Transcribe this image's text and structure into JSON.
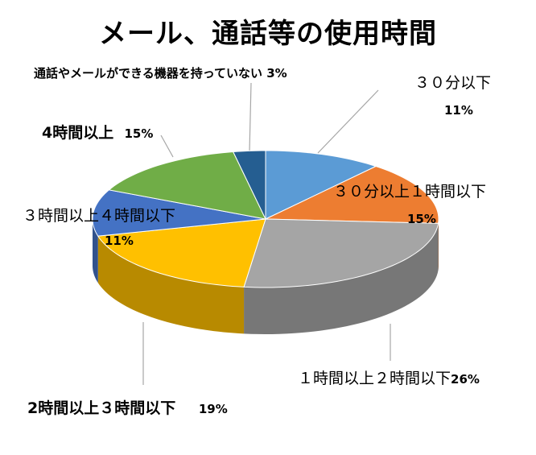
{
  "chart_data": {
    "type": "pie",
    "title": "メール、通話等の使用時間",
    "slices": [
      {
        "category": "３０分以下",
        "value": 11,
        "value_label": "11%",
        "color": "#5b9bd5"
      },
      {
        "category": "３０分以上１時間以下",
        "value": 15,
        "value_label": "15%",
        "color": "#ed7d31"
      },
      {
        "category": "１時間以上２時間以下",
        "value": 26,
        "value_label": "26%",
        "color": "#a5a5a5"
      },
      {
        "category": "2時間以上３時間以下",
        "value": 19,
        "value_label": "19%",
        "color": "#ffc000"
      },
      {
        "category": "３時間以上４時間以下",
        "value": 11,
        "value_label": "11%",
        "color": "#4472c4"
      },
      {
        "category": "4時間以上",
        "value": 15,
        "value_label": "15%",
        "color": "#70ad47"
      },
      {
        "category": "通話やメールができる機器を持っていない",
        "value": 3,
        "value_label": "3%",
        "color": "#255e91"
      }
    ],
    "legend": "none",
    "style": "3d-tilted"
  }
}
